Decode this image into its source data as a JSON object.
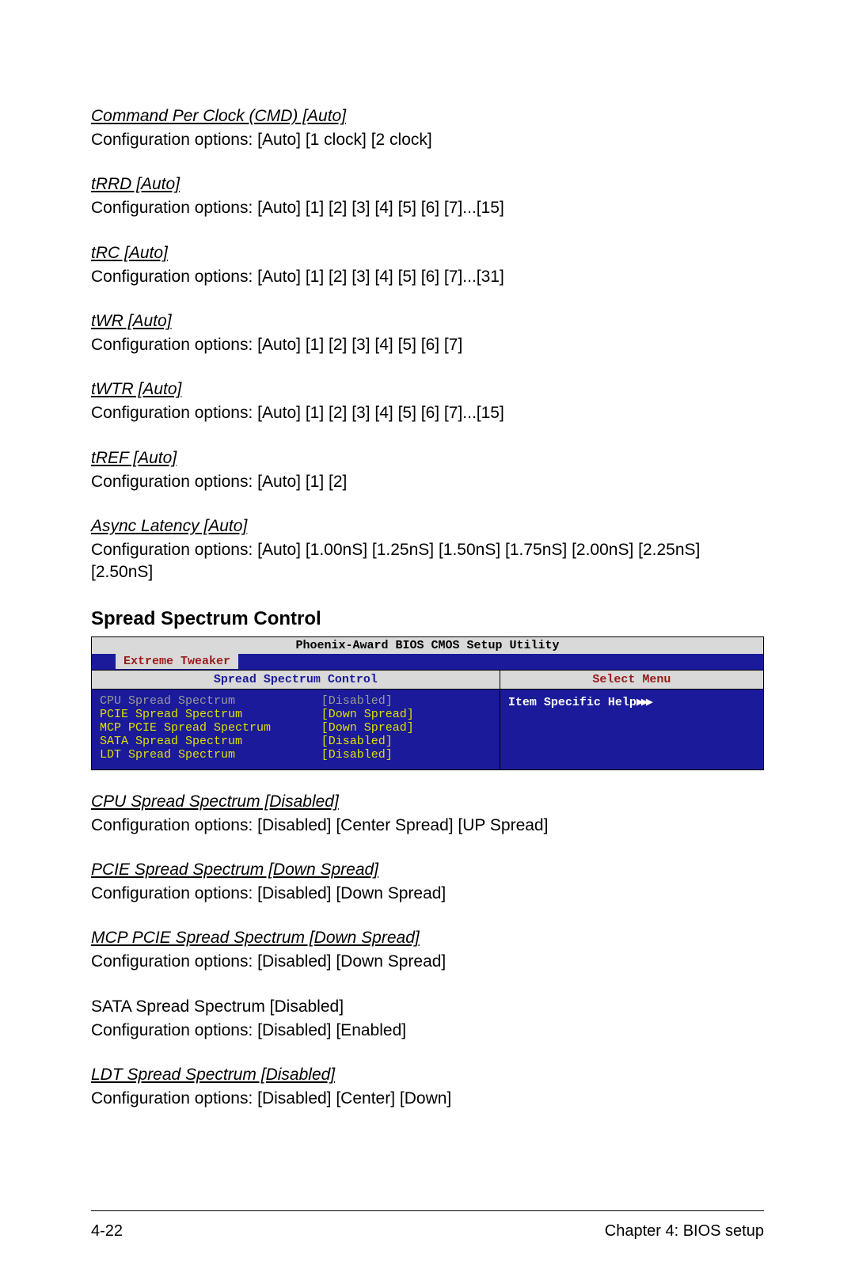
{
  "options_top": [
    {
      "title": "Command Per Clock (CMD) [Auto]",
      "desc": "Configuration options: [Auto] [1 clock] [2 clock]"
    },
    {
      "title": "tRRD [Auto]",
      "desc": "Configuration options: [Auto] [1] [2] [3] [4] [5] [6] [7]...[15]"
    },
    {
      "title": "tRC [Auto]",
      "desc": "Configuration options: [Auto] [1] [2] [3] [4] [5] [6] [7]...[31]"
    },
    {
      "title": "tWR [Auto]",
      "desc": "Configuration options: [Auto] [1] [2] [3] [4] [5] [6] [7]"
    },
    {
      "title": "tWTR [Auto]",
      "desc": "Configuration options: [Auto] [1] [2] [3] [4] [5] [6] [7]...[15]"
    },
    {
      "title": "tREF [Auto]",
      "desc": "Configuration options: [Auto] [1] [2]"
    },
    {
      "title": "Async Latency [Auto]",
      "desc": "Configuration options: [Auto] [1.00nS] [1.25nS] [1.50nS] [1.75nS] [2.00nS] [2.25nS] [2.50nS]"
    }
  ],
  "section_heading": "Spread Spectrum Control",
  "bios": {
    "utility_title": "Phoenix-Award BIOS CMOS Setup Utility",
    "tab": "Extreme Tweaker",
    "left_header": "Spread Spectrum Control",
    "right_header": "Select Menu",
    "help_label": "Item Specific Help",
    "rows": [
      {
        "label": "CPU Spread Spectrum",
        "value": "[Disabled]",
        "selected": true
      },
      {
        "label": "PCIE Spread Spectrum",
        "value": "[Down Spread]",
        "selected": false
      },
      {
        "label": "MCP PCIE Spread Spectrum",
        "value": "[Down Spread]",
        "selected": false
      },
      {
        "label": "SATA Spread Spectrum",
        "value": "[Disabled]",
        "selected": false
      },
      {
        "label": "LDT Spread Spectrum",
        "value": "[Disabled]",
        "selected": false
      }
    ]
  },
  "options_bottom": [
    {
      "title": "CPU Spread Spectrum [Disabled]",
      "italic": true,
      "desc": "Configuration options: [Disabled] [Center Spread] [UP Spread]"
    },
    {
      "title": "PCIE Spread Spectrum [Down Spread]",
      "italic": true,
      "desc": "Configuration options: [Disabled] [Down Spread]"
    },
    {
      "title": "MCP PCIE Spread Spectrum [Down Spread]",
      "italic": true,
      "desc": "Configuration options: [Disabled] [Down Spread]"
    },
    {
      "title": "SATA Spread Spectrum [Disabled]",
      "italic": false,
      "desc": "Configuration options: [Disabled] [Enabled]"
    },
    {
      "title": "LDT Spread Spectrum [Disabled]",
      "italic": true,
      "desc": "Configuration options: [Disabled] [Center] [Down]"
    }
  ],
  "footer": {
    "page": "4-22",
    "chapter": "Chapter 4: BIOS setup"
  }
}
